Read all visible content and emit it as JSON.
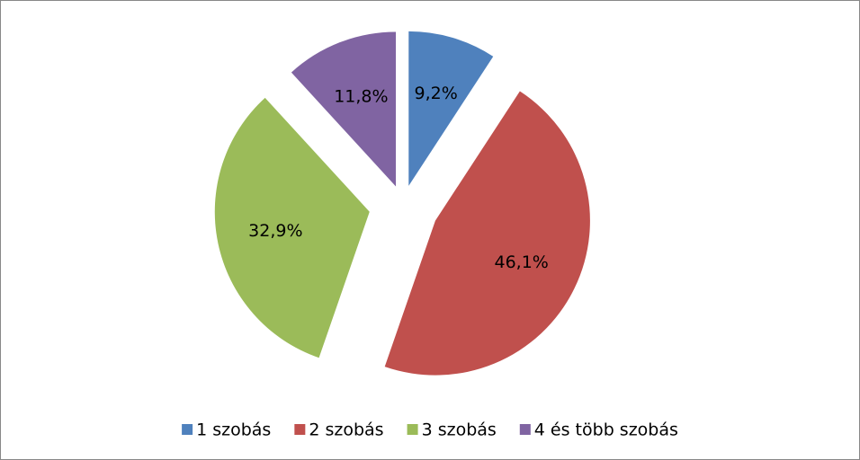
{
  "chart_data": {
    "type": "pie",
    "categories": [
      "1 szobás",
      "2 szobás",
      "3 szobás",
      "4 és több szobás"
    ],
    "values": [
      9.2,
      46.1,
      32.9,
      11.8
    ],
    "value_labels": [
      "9,2%",
      "46,1%",
      "32,9%",
      "11,8%"
    ],
    "colors": [
      "#4f81bd",
      "#c0504d",
      "#9bbb59",
      "#8064a2"
    ],
    "legend": "bottom"
  }
}
